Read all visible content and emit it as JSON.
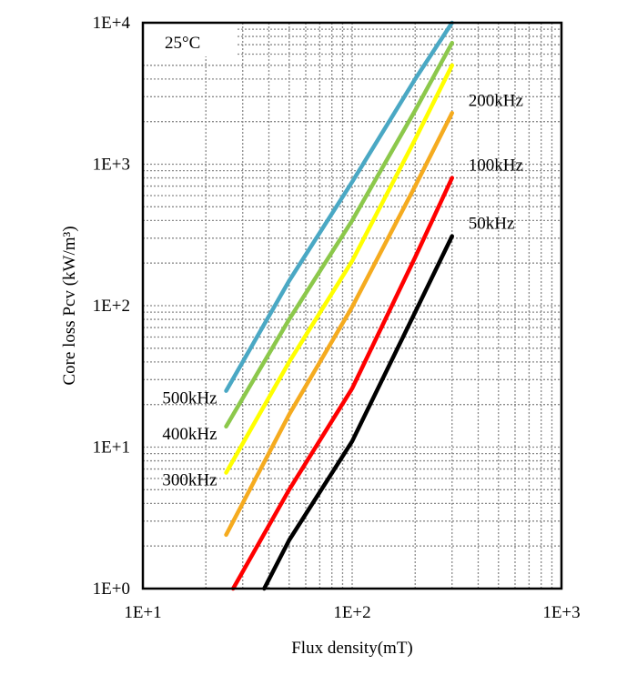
{
  "chart_data": {
    "type": "line",
    "title": "",
    "annotation": "25°C",
    "xlabel": "Flux density(mT)",
    "ylabel": "Core loss Pcv (kW/m³)",
    "xscale": "log",
    "yscale": "log",
    "xlim": [
      10,
      1000
    ],
    "ylim": [
      1,
      10000
    ],
    "x_ticks": [
      {
        "value": 10,
        "label": "1E+1"
      },
      {
        "value": 100,
        "label": "1E+2"
      },
      {
        "value": 1000,
        "label": "1E+3"
      }
    ],
    "y_ticks": [
      {
        "value": 1,
        "label": "1E+0"
      },
      {
        "value": 10,
        "label": "1E+1"
      },
      {
        "value": 100,
        "label": "1E+2"
      },
      {
        "value": 1000,
        "label": "1E+3"
      },
      {
        "value": 10000,
        "label": "1E+4"
      }
    ],
    "grid": true,
    "legend": "inline labels",
    "series": [
      {
        "name": "500kHz",
        "color": "#4aa8c4",
        "label_pos": "start",
        "points": [
          [
            25,
            25
          ],
          [
            50,
            150
          ],
          [
            100,
            750
          ],
          [
            200,
            4000
          ],
          [
            300,
            10000
          ]
        ]
      },
      {
        "name": "400kHz",
        "color": "#8cc84b",
        "label_pos": "start",
        "points": [
          [
            25,
            14
          ],
          [
            50,
            80
          ],
          [
            100,
            400
          ],
          [
            200,
            2400
          ],
          [
            300,
            7200
          ]
        ]
      },
      {
        "name": "300kHz",
        "color": "#ffff00",
        "label_pos": "start",
        "points": [
          [
            25,
            6.6
          ],
          [
            50,
            40
          ],
          [
            100,
            207
          ],
          [
            200,
            1500
          ],
          [
            300,
            5000
          ]
        ]
      },
      {
        "name": "200kHz",
        "color": "#f5ab1f",
        "label_pos": "end",
        "points": [
          [
            25,
            2.4
          ],
          [
            50,
            17
          ],
          [
            100,
            98
          ],
          [
            200,
            700
          ],
          [
            300,
            2300
          ]
        ]
      },
      {
        "name": "100kHz",
        "color": "#ff0000",
        "label_pos": "end",
        "points": [
          [
            27,
            1
          ],
          [
            50,
            5
          ],
          [
            100,
            26
          ],
          [
            200,
            220
          ],
          [
            300,
            800
          ]
        ]
      },
      {
        "name": "50kHz",
        "color": "#000000",
        "label_pos": "end",
        "points": [
          [
            38,
            1
          ],
          [
            50,
            2.2
          ],
          [
            100,
            11
          ],
          [
            200,
            90
          ],
          [
            300,
            310
          ]
        ]
      }
    ]
  }
}
